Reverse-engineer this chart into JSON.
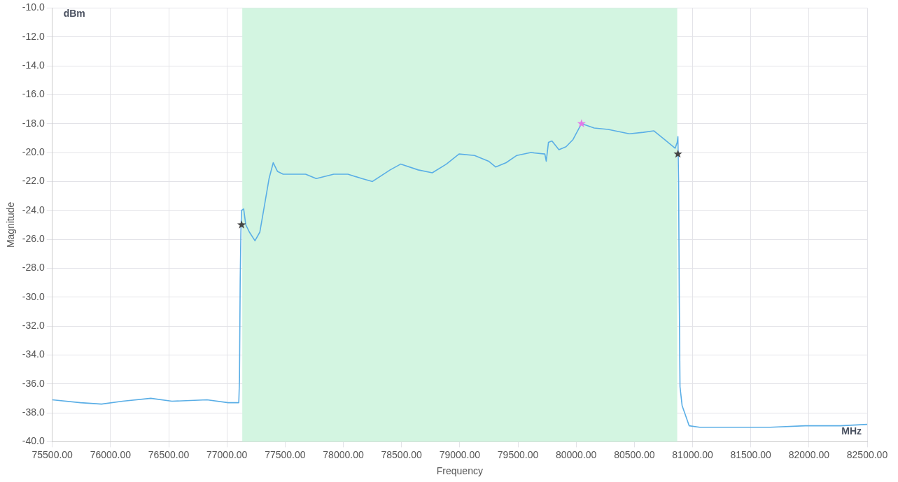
{
  "chart_data": {
    "type": "line",
    "xlabel": "Frequency",
    "ylabel": "Magnitude",
    "annotations": [
      "dBm",
      "MHz"
    ],
    "xlim": [
      75500,
      82500
    ],
    "xticks": [
      {
        "value": 75500,
        "label": "75500.00"
      },
      {
        "value": 76000,
        "label": "76000.00"
      },
      {
        "value": 76500,
        "label": "76500.00"
      },
      {
        "value": 77000,
        "label": "77000.00"
      },
      {
        "value": 77500,
        "label": "77500.00"
      },
      {
        "value": 78000,
        "label": "78000.00"
      },
      {
        "value": 78500,
        "label": "78500.00"
      },
      {
        "value": 79000,
        "label": "79000.00"
      },
      {
        "value": 79500,
        "label": "79500.00"
      },
      {
        "value": 80000,
        "label": "80000.00"
      },
      {
        "value": 80500,
        "label": "80500.00"
      },
      {
        "value": 81000,
        "label": "81000.00"
      },
      {
        "value": 81500,
        "label": "81500.00"
      },
      {
        "value": 82000,
        "label": "82000.00"
      },
      {
        "value": 82500,
        "label": "82500.00"
      }
    ],
    "ylim": [
      -40,
      -10
    ],
    "yticks": [
      {
        "value": -40,
        "label": "-40.0"
      },
      {
        "value": -38,
        "label": "-38.0"
      },
      {
        "value": -36,
        "label": "-36.0"
      },
      {
        "value": -34,
        "label": "-34.0"
      },
      {
        "value": -32,
        "label": "-32.0"
      },
      {
        "value": -30,
        "label": "-30.0"
      },
      {
        "value": -28,
        "label": "-28.0"
      },
      {
        "value": -26,
        "label": "-26.0"
      },
      {
        "value": -24,
        "label": "-24.0"
      },
      {
        "value": -22,
        "label": "-22.0"
      },
      {
        "value": -20,
        "label": "-20.0"
      },
      {
        "value": -18,
        "label": "-18.0"
      },
      {
        "value": -16,
        "label": "-16.0"
      },
      {
        "value": -14,
        "label": "-14.0"
      },
      {
        "value": -12,
        "label": "-12.0"
      },
      {
        "value": -10,
        "label": "-10.0"
      }
    ],
    "grid": true,
    "legend": false,
    "bands": [
      {
        "axis": "x",
        "from": 77132,
        "to": 80868,
        "color": "#d3f5e1"
      }
    ],
    "series": [
      {
        "type": "line",
        "marker": "none",
        "color": "#5aaee6",
        "x": [
          75500,
          75742,
          75923,
          76104,
          76346,
          76528,
          76829,
          77011,
          77102,
          77108,
          77114,
          77120,
          77126,
          77144,
          77162,
          77193,
          77241,
          77283,
          77326,
          77362,
          77398,
          77434,
          77483,
          77555,
          77676,
          77767,
          77918,
          78039,
          78160,
          78250,
          78402,
          78492,
          78643,
          78764,
          78885,
          78994,
          79127,
          79248,
          79308,
          79399,
          79490,
          79611,
          79731,
          79743,
          79762,
          79792,
          79852,
          79913,
          79973,
          80046,
          80155,
          80275,
          80457,
          80578,
          80668,
          80759,
          80850,
          80868,
          80874,
          80880,
          80886,
          80892,
          80910,
          80971,
          81061,
          81364,
          81666,
          81968,
          82270,
          82500
        ],
        "values": [
          -37.1,
          -37.3,
          -37.4,
          -37.2,
          -37.0,
          -37.2,
          -37.1,
          -37.3,
          -37.3,
          -35.7,
          -28.9,
          -25.5,
          -24.0,
          -23.9,
          -25.0,
          -25.5,
          -26.1,
          -25.5,
          -23.5,
          -21.8,
          -20.7,
          -21.3,
          -21.5,
          -21.5,
          -21.5,
          -21.8,
          -21.5,
          -21.5,
          -21.8,
          -22.0,
          -21.2,
          -20.8,
          -21.2,
          -21.4,
          -20.8,
          -20.1,
          -20.2,
          -20.6,
          -21.0,
          -20.7,
          -20.2,
          -20.0,
          -20.1,
          -20.6,
          -19.3,
          -19.2,
          -19.8,
          -19.6,
          -19.1,
          -18.0,
          -18.3,
          -18.4,
          -18.7,
          -18.6,
          -18.5,
          -19.1,
          -19.7,
          -19.3,
          -18.9,
          -22.0,
          -30.4,
          -36.2,
          -37.5,
          -38.9,
          -39.0,
          -39.0,
          -39.0,
          -38.9,
          -38.9,
          -38.8
        ]
      },
      {
        "type": "scatter",
        "marker": "star",
        "colors": [
          "#444444",
          "#444444",
          "#e27be8"
        ],
        "x": [
          77126,
          80874,
          80046
        ],
        "values": [
          -25.0,
          -20.1,
          -18.0
        ]
      }
    ]
  }
}
